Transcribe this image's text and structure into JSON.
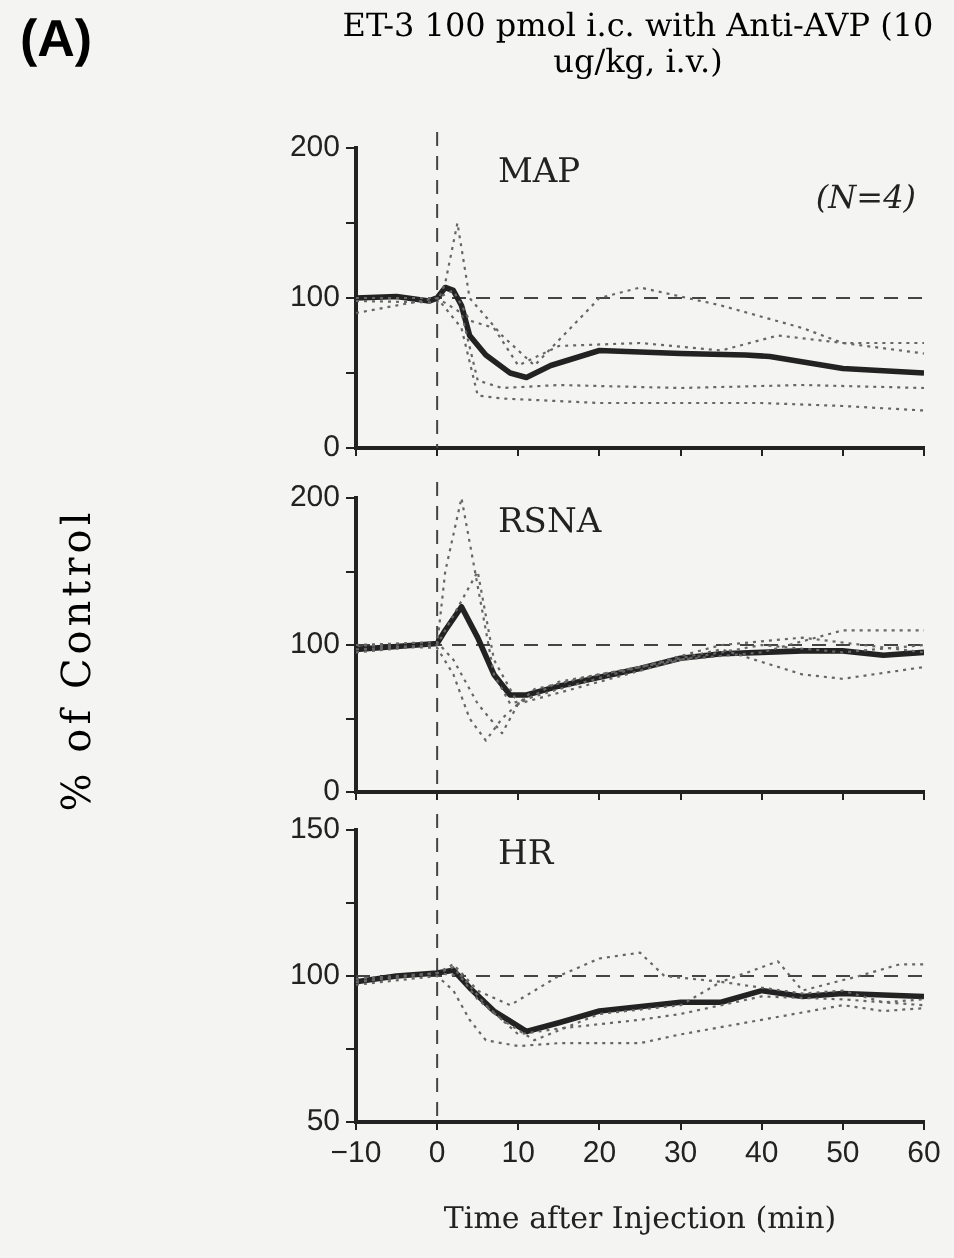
{
  "chart_data": [
    {
      "type": "line",
      "title": "ET-3 100 pmol i.c. with Anti-AVP (10 ug/kg, i.v.)",
      "annotations": [
        "(A)",
        "MAP",
        "(N=4)"
      ],
      "xlim": [
        -10,
        60
      ],
      "xticks": [
        -10,
        0,
        10,
        20,
        30,
        40,
        50,
        60
      ],
      "ylim": [
        0,
        200
      ],
      "yticks": [
        0,
        {
          "value": 50,
          "label": null
        },
        100,
        {
          "value": 150,
          "label": null
        },
        200
      ],
      "tick_labels": "y",
      "grid": false,
      "legend": false,
      "marker": "none",
      "ref_lines": [
        {
          "axis": "y",
          "value": 100,
          "line_style": "dashed",
          "color": "#444444"
        },
        {
          "axis": "x",
          "value": 0,
          "line_style": "dashed",
          "color": "#444444"
        }
      ],
      "series": [
        {
          "color": "#666666",
          "line_style": "dotted",
          "x": [
            -10,
            0,
            1,
            2.5,
            4,
            8,
            12,
            20,
            25,
            35,
            45,
            50,
            60
          ],
          "values": [
            98,
            97,
            110,
            150,
            100,
            75,
            55,
            100,
            107,
            95,
            80,
            70,
            63
          ]
        },
        {
          "color": "#666666",
          "line_style": "dotted",
          "x": [
            -10,
            0,
            2,
            4,
            7,
            10,
            15,
            25,
            35,
            42,
            50,
            60
          ],
          "values": [
            90,
            100,
            105,
            85,
            80,
            55,
            68,
            70,
            65,
            75,
            70,
            70
          ]
        },
        {
          "color": "#666666",
          "line_style": "dotted",
          "x": [
            -10,
            0,
            3,
            5,
            8,
            15,
            30,
            45,
            60
          ],
          "values": [
            100,
            100,
            90,
            45,
            40,
            42,
            40,
            42,
            40
          ]
        },
        {
          "color": "#666666",
          "line_style": "dotted",
          "x": [
            -10,
            0,
            3,
            5,
            8,
            20,
            40,
            50,
            60
          ],
          "values": [
            100,
            100,
            80,
            35,
            33,
            30,
            30,
            28,
            25
          ]
        },
        {
          "color": "#222222",
          "line_style": "solid",
          "x": [
            -10,
            -5,
            -1,
            0,
            1,
            2,
            3,
            4,
            6,
            9,
            11,
            14,
            20,
            30,
            38,
            41,
            50,
            60
          ],
          "values": [
            100,
            101,
            98,
            100,
            107,
            105,
            95,
            75,
            62,
            50,
            47,
            55,
            65,
            63,
            62,
            61,
            53,
            50
          ]
        }
      ]
    },
    {
      "type": "line",
      "ylabel": "% of Control",
      "annotations": [
        "RSNA"
      ],
      "xlim": [
        -10,
        60
      ],
      "xticks": [
        -10,
        0,
        10,
        20,
        30,
        40,
        50,
        60
      ],
      "ylim": [
        0,
        200
      ],
      "yticks": [
        0,
        {
          "value": 50,
          "label": null
        },
        100,
        {
          "value": 150,
          "label": null
        },
        200
      ],
      "tick_labels": "y",
      "grid": false,
      "legend": false,
      "marker": "none",
      "ref_lines": [
        {
          "axis": "y",
          "value": 100,
          "line_style": "dashed",
          "color": "#444444"
        },
        {
          "axis": "x",
          "value": 0,
          "line_style": "dashed",
          "color": "#444444"
        }
      ],
      "series": [
        {
          "color": "#666666",
          "line_style": "dotted",
          "x": [
            -10,
            0,
            1,
            3,
            5,
            7,
            9,
            15,
            25,
            35,
            45,
            50,
            60
          ],
          "values": [
            97,
            100,
            150,
            200,
            140,
            80,
            60,
            70,
            85,
            97,
            80,
            77,
            85
          ]
        },
        {
          "color": "#666666",
          "line_style": "dotted",
          "x": [
            -10,
            0,
            2,
            5,
            7,
            10,
            20,
            30,
            40,
            50,
            60
          ],
          "values": [
            95,
            100,
            120,
            150,
            90,
            60,
            75,
            90,
            95,
            110,
            110
          ]
        },
        {
          "color": "#666666",
          "line_style": "dotted",
          "x": [
            -10,
            0,
            2,
            4,
            6,
            8,
            12,
            20,
            30,
            40,
            50,
            60
          ],
          "values": [
            100,
            98,
            80,
            50,
            35,
            50,
            70,
            80,
            90,
            100,
            95,
            100
          ]
        },
        {
          "color": "#666666",
          "line_style": "dotted",
          "x": [
            -10,
            0,
            2,
            5,
            8,
            10,
            15,
            25,
            35,
            45,
            60
          ],
          "values": [
            100,
            102,
            90,
            60,
            40,
            60,
            75,
            85,
            100,
            105,
            95
          ]
        },
        {
          "color": "#222222",
          "line_style": "solid",
          "x": [
            -10,
            -5,
            0,
            1,
            3,
            5,
            7,
            9,
            11,
            15,
            20,
            25,
            30,
            35,
            40,
            45,
            50,
            55,
            60
          ],
          "values": [
            97,
            99,
            101,
            110,
            126,
            105,
            80,
            66,
            66,
            72,
            78,
            84,
            91,
            94,
            95,
            96,
            96,
            93,
            95
          ]
        }
      ]
    },
    {
      "type": "line",
      "xlabel": "Time after Injection (min)",
      "annotations": [
        "HR"
      ],
      "xlim": [
        -10,
        60
      ],
      "xticks": [
        -10,
        0,
        10,
        20,
        30,
        40,
        50,
        60
      ],
      "ylim": [
        50,
        150
      ],
      "yticks": [
        50,
        {
          "value": 75,
          "label": null
        },
        100,
        {
          "value": 125,
          "label": null
        },
        150
      ],
      "grid": false,
      "legend": false,
      "marker": "none",
      "ref_lines": [
        {
          "axis": "y",
          "value": 100,
          "line_style": "dashed",
          "color": "#444444"
        },
        {
          "axis": "x",
          "value": 0,
          "line_style": "dashed",
          "color": "#444444"
        }
      ],
      "series": [
        {
          "color": "#666666",
          "line_style": "dotted",
          "x": [
            -10,
            0,
            2,
            5,
            9,
            15,
            20,
            25,
            28,
            35,
            42,
            45,
            52,
            57,
            60
          ],
          "values": [
            98,
            101,
            104,
            95,
            90,
            100,
            106,
            108,
            100,
            98,
            105,
            95,
            100,
            104,
            104
          ]
        },
        {
          "color": "#666666",
          "line_style": "dotted",
          "x": [
            -10,
            0,
            2,
            5,
            8,
            12,
            20,
            30,
            35,
            45,
            50,
            55,
            60
          ],
          "values": [
            98,
            101,
            103,
            92,
            85,
            78,
            87,
            90,
            98,
            94,
            95,
            91,
            92
          ]
        },
        {
          "color": "#666666",
          "line_style": "dotted",
          "x": [
            -10,
            0,
            2,
            4,
            6,
            10,
            15,
            25,
            30,
            40,
            50,
            55,
            60
          ],
          "values": [
            97,
            100,
            95,
            85,
            78,
            76,
            77,
            77,
            80,
            85,
            90,
            88,
            89
          ]
        },
        {
          "color": "#666666",
          "line_style": "dotted",
          "x": [
            -10,
            0,
            3,
            6,
            10,
            15,
            25,
            30,
            40,
            50,
            60
          ],
          "values": [
            99,
            101,
            100,
            90,
            80,
            82,
            85,
            87,
            93,
            92,
            90
          ]
        },
        {
          "color": "#222222",
          "line_style": "solid",
          "x": [
            -10,
            -5,
            0,
            2,
            4,
            7,
            11,
            15,
            20,
            30,
            35,
            40,
            45,
            50,
            60
          ],
          "values": [
            98,
            100,
            101,
            102,
            96,
            88,
            81,
            84,
            88,
            91,
            91,
            95,
            93,
            94,
            93
          ]
        }
      ]
    }
  ]
}
